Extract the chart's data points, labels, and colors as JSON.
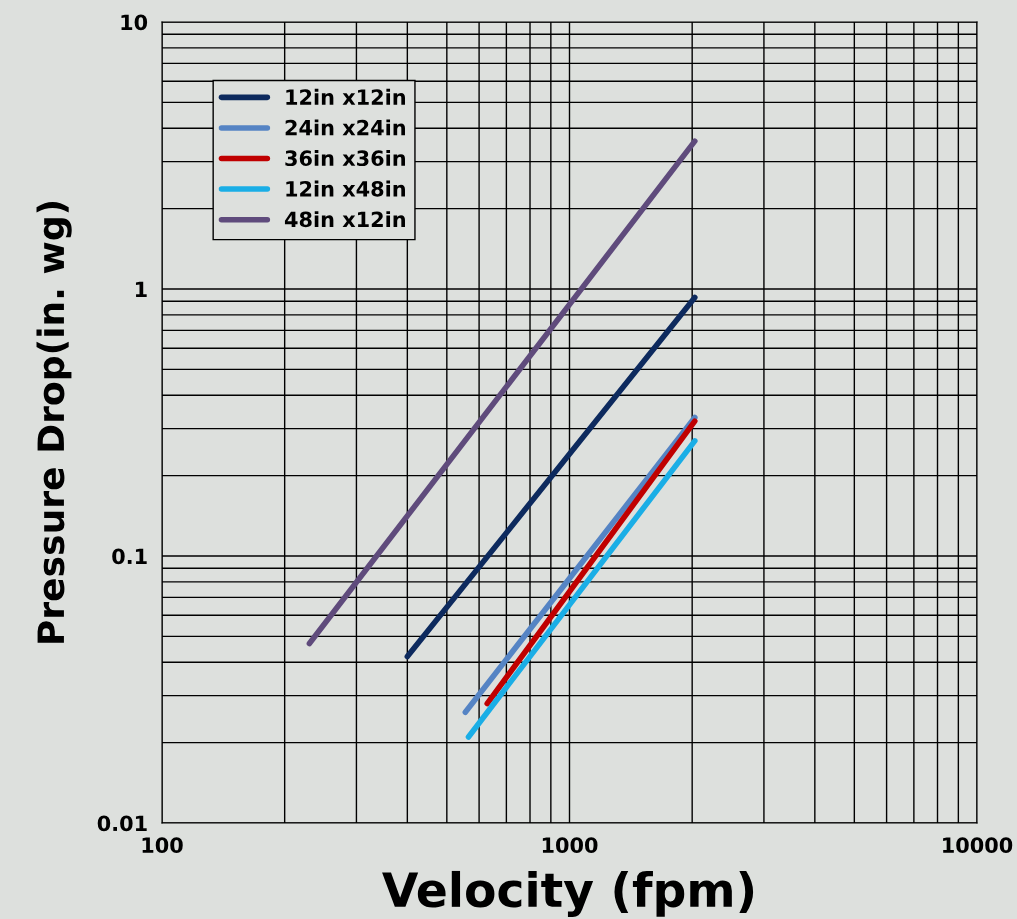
{
  "chart_data": {
    "type": "line",
    "xlabel": "Velocity (fpm)",
    "ylabel": "Pressure Drop(in. wg)",
    "log": "xy",
    "grid": true,
    "legend": "top left",
    "marker": "none",
    "line_style": "solid",
    "xlim": [
      100,
      10000
    ],
    "ylim": [
      0.01,
      10
    ],
    "xticks": [
      100,
      {
        "value": 200,
        "label": null
      },
      {
        "value": 300,
        "label": null
      },
      {
        "value": 400,
        "label": null
      },
      {
        "value": 500,
        "label": null
      },
      {
        "value": 600,
        "label": null
      },
      {
        "value": 700,
        "label": null
      },
      {
        "value": 800,
        "label": null
      },
      {
        "value": 900,
        "label": null
      },
      1000,
      {
        "value": 2000,
        "label": null
      },
      {
        "value": 3000,
        "label": null
      },
      {
        "value": 4000,
        "label": null
      },
      {
        "value": 5000,
        "label": null
      },
      {
        "value": 6000,
        "label": null
      },
      {
        "value": 7000,
        "label": null
      },
      {
        "value": 8000,
        "label": null
      },
      {
        "value": 9000,
        "label": null
      },
      10000
    ],
    "yticks": [
      0.01,
      {
        "value": 0.02,
        "label": null
      },
      {
        "value": 0.03,
        "label": null
      },
      {
        "value": 0.04,
        "label": null
      },
      {
        "value": 0.05,
        "label": null
      },
      {
        "value": 0.06,
        "label": null
      },
      {
        "value": 0.07,
        "label": null
      },
      {
        "value": 0.08,
        "label": null
      },
      {
        "value": 0.09,
        "label": null
      },
      0.1,
      {
        "value": 0.2,
        "label": null
      },
      {
        "value": 0.3,
        "label": null
      },
      {
        "value": 0.4,
        "label": null
      },
      {
        "value": 0.5,
        "label": null
      },
      {
        "value": 0.6,
        "label": null
      },
      {
        "value": 0.7,
        "label": null
      },
      {
        "value": 0.8,
        "label": null
      },
      {
        "value": 0.9,
        "label": null
      },
      1,
      {
        "value": 2,
        "label": null
      },
      {
        "value": 3,
        "label": null
      },
      {
        "value": 4,
        "label": null
      },
      {
        "value": 5,
        "label": null
      },
      {
        "value": 6,
        "label": null
      },
      {
        "value": 7,
        "label": null
      },
      {
        "value": 8,
        "label": null
      },
      {
        "value": 9,
        "label": null
      },
      10
    ],
    "series": [
      {
        "name": "12in x12in",
        "color": "#0d2a5e",
        "x": [
          400,
          2030
        ],
        "values": [
          0.042,
          0.93
        ]
      },
      {
        "name": "24in x24in",
        "color": "#5584c4",
        "x": [
          555,
          2030
        ],
        "values": [
          0.026,
          0.33
        ]
      },
      {
        "name": "36in x36in",
        "color": "#c00000",
        "x": [
          628,
          2030
        ],
        "values": [
          0.028,
          0.32
        ]
      },
      {
        "name": "12in x48in",
        "color": "#1aaee6",
        "x": [
          565,
          2030
        ],
        "values": [
          0.021,
          0.27
        ]
      },
      {
        "name": "48in x12in",
        "color": "#5f4b7c",
        "x": [
          230,
          2030
        ],
        "values": [
          0.047,
          3.58
        ]
      }
    ]
  }
}
